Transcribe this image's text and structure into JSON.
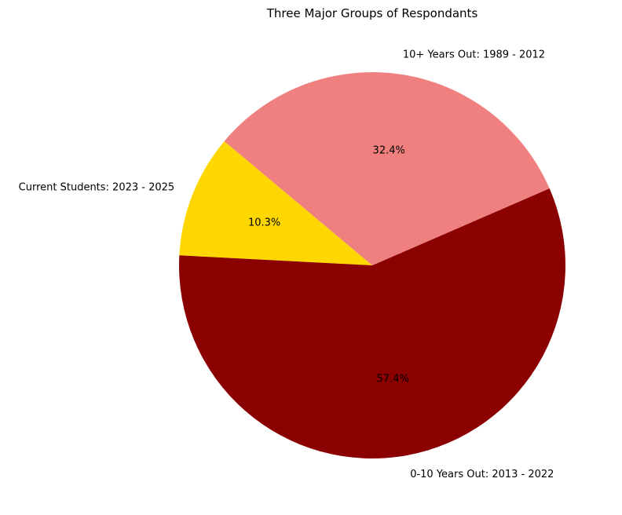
{
  "chart_data": {
    "type": "pie",
    "title": "Three Major Groups of Respondants",
    "start_angle_deg": 140,
    "direction": "counterclockwise",
    "slices": [
      {
        "label": "Current Students: 2023 - 2025",
        "value": 10.3,
        "pct_label": "10.3%",
        "color": "#FFD700"
      },
      {
        "label": "0-10 Years Out: 2013 - 2022",
        "value": 57.4,
        "pct_label": "57.4%",
        "color": "#8B0000"
      },
      {
        "label": "10+ Years Out: 1989 - 2012",
        "value": 32.4,
        "pct_label": "32.4%",
        "color": "#F08080"
      }
    ]
  }
}
